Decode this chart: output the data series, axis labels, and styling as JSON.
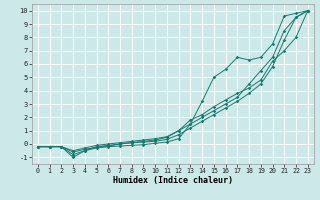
{
  "xlabel": "Humidex (Indice chaleur)",
  "ylabel": "",
  "bg_color": "#cce8e8",
  "grid_color": "#ffffff",
  "line_color": "#1a7a6e",
  "xlim": [
    -0.5,
    23.5
  ],
  "ylim": [
    -1.5,
    10.5
  ],
  "xticks": [
    0,
    1,
    2,
    3,
    4,
    5,
    6,
    7,
    8,
    9,
    10,
    11,
    12,
    13,
    14,
    15,
    16,
    17,
    18,
    19,
    20,
    21,
    22,
    23
  ],
  "yticks": [
    -1,
    0,
    1,
    2,
    3,
    4,
    5,
    6,
    7,
    8,
    9,
    10
  ],
  "series": [
    [
      0,
      1,
      2,
      3,
      4,
      5,
      6,
      7,
      8,
      9,
      10,
      11,
      12,
      13,
      14,
      15,
      16,
      17,
      18,
      19,
      20,
      21,
      22,
      23
    ],
    [
      -0.2,
      -0.2,
      -0.2,
      -0.8,
      -0.5,
      -0.3,
      -0.2,
      -0.15,
      -0.1,
      -0.05,
      0.05,
      0.15,
      0.4,
      1.5,
      3.2,
      5.0,
      5.6,
      6.5,
      6.3,
      6.5,
      7.5,
      9.6,
      9.8,
      10.0
    ],
    [
      -0.2,
      -0.2,
      -0.2,
      -1.0,
      -0.5,
      -0.2,
      -0.1,
      0.0,
      0.1,
      0.2,
      0.3,
      0.5,
      1.0,
      1.8,
      2.2,
      2.8,
      3.3,
      3.8,
      4.2,
      4.8,
      6.2,
      7.0,
      8.0,
      10.0
    ],
    [
      -0.2,
      -0.2,
      -0.2,
      -0.6,
      -0.4,
      -0.25,
      -0.15,
      0.0,
      0.1,
      0.15,
      0.2,
      0.35,
      0.7,
      1.2,
      1.7,
      2.2,
      2.7,
      3.2,
      3.8,
      4.5,
      5.8,
      7.8,
      9.5,
      10.0
    ],
    [
      -0.2,
      -0.2,
      -0.2,
      -0.5,
      -0.3,
      -0.1,
      0.0,
      0.1,
      0.2,
      0.3,
      0.4,
      0.55,
      1.0,
      1.5,
      2.0,
      2.5,
      3.0,
      3.5,
      4.5,
      5.5,
      6.5,
      8.5,
      9.5,
      10.0
    ]
  ]
}
